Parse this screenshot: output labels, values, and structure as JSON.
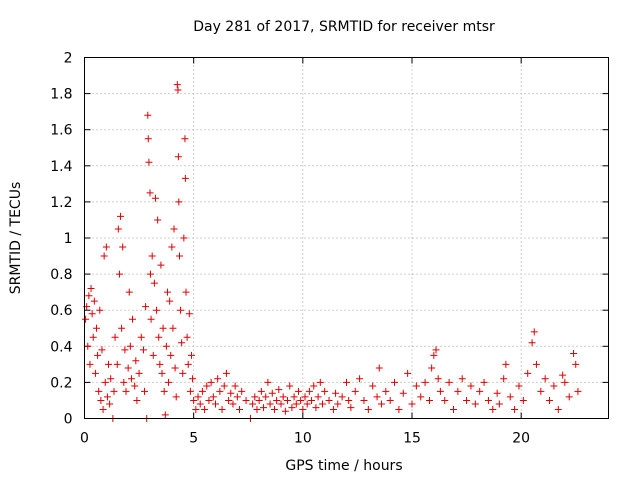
{
  "chart_data": {
    "type": "scatter",
    "title": "Day 281 of 2017, SRMTID for receiver mtsr",
    "xlabel": "GPS time / hours",
    "ylabel": "SRMTID / TECUs",
    "xlim": [
      0,
      24
    ],
    "ylim": [
      0,
      2
    ],
    "xticks": [
      "0",
      "5",
      "10",
      "15",
      "20"
    ],
    "yticks": [
      "0",
      "0.2",
      "0.4",
      "0.6",
      "0.8",
      "1",
      "1.2",
      "1.4",
      "1.6",
      "1.8",
      "2"
    ],
    "grid": true,
    "marker": "+",
    "color": "#e00000",
    "series": [
      {
        "name": "SRMTID",
        "points": [
          [
            0.05,
            0.55
          ],
          [
            0.1,
            0.62
          ],
          [
            0.15,
            0.4
          ],
          [
            0.2,
            0.68
          ],
          [
            0.25,
            0.3
          ],
          [
            0.3,
            0.72
          ],
          [
            0.35,
            0.58
          ],
          [
            0.4,
            0.45
          ],
          [
            0.45,
            0.65
          ],
          [
            0.5,
            0.25
          ],
          [
            0.55,
            0.5
          ],
          [
            0.6,
            0.35
          ],
          [
            0.65,
            0.15
          ],
          [
            0.7,
            0.6
          ],
          [
            0.75,
            0.1
          ],
          [
            0.8,
            0.38
          ],
          [
            0.85,
            0.05
          ],
          [
            0.9,
            0.9
          ],
          [
            0.95,
            0.2
          ],
          [
            1.0,
            0.95
          ],
          [
            1.05,
            0.12
          ],
          [
            1.1,
            0.3
          ],
          [
            1.15,
            0.08
          ],
          [
            1.2,
            0.22
          ],
          [
            1.3,
            0.0
          ],
          [
            1.35,
            0.15
          ],
          [
            1.4,
            0.45
          ],
          [
            1.5,
            0.3
          ],
          [
            1.55,
            1.05
          ],
          [
            1.6,
            0.8
          ],
          [
            1.65,
            1.12
          ],
          [
            1.7,
            0.5
          ],
          [
            1.75,
            0.95
          ],
          [
            1.8,
            0.2
          ],
          [
            1.85,
            0.38
          ],
          [
            1.9,
            0.15
          ],
          [
            2.0,
            0.28
          ],
          [
            2.05,
            0.7
          ],
          [
            2.1,
            0.4
          ],
          [
            2.15,
            0.22
          ],
          [
            2.2,
            0.55
          ],
          [
            2.3,
            0.18
          ],
          [
            2.35,
            0.32
          ],
          [
            2.4,
            0.1
          ],
          [
            2.5,
            0.25
          ],
          [
            2.6,
            0.45
          ],
          [
            2.7,
            0.38
          ],
          [
            2.75,
            0.15
          ],
          [
            2.8,
            0.62
          ],
          [
            2.85,
            0.0
          ],
          [
            2.9,
            1.68
          ],
          [
            2.92,
            1.55
          ],
          [
            2.95,
            1.42
          ],
          [
            3.0,
            1.25
          ],
          [
            3.02,
            0.8
          ],
          [
            3.05,
            0.55
          ],
          [
            3.1,
            0.9
          ],
          [
            3.15,
            0.35
          ],
          [
            3.2,
            0.75
          ],
          [
            3.25,
            1.22
          ],
          [
            3.3,
            0.6
          ],
          [
            3.35,
            1.1
          ],
          [
            3.4,
            0.45
          ],
          [
            3.45,
            0.3
          ],
          [
            3.5,
            0.85
          ],
          [
            3.55,
            0.25
          ],
          [
            3.6,
            0.5
          ],
          [
            3.65,
            0.15
          ],
          [
            3.7,
            0.02
          ],
          [
            3.75,
            0.4
          ],
          [
            3.8,
            0.7
          ],
          [
            3.85,
            0.2
          ],
          [
            3.9,
            0.65
          ],
          [
            3.95,
            0.35
          ],
          [
            4.0,
            0.95
          ],
          [
            4.05,
            0.5
          ],
          [
            4.1,
            1.05
          ],
          [
            4.15,
            0.28
          ],
          [
            4.2,
            0.12
          ],
          [
            4.25,
            1.85
          ],
          [
            4.28,
            1.82
          ],
          [
            4.3,
            1.45
          ],
          [
            4.32,
            1.2
          ],
          [
            4.35,
            0.9
          ],
          [
            4.4,
            0.6
          ],
          [
            4.45,
            0.42
          ],
          [
            4.5,
            0.25
          ],
          [
            4.55,
            1.0
          ],
          [
            4.6,
            1.55
          ],
          [
            4.62,
            1.33
          ],
          [
            4.65,
            0.7
          ],
          [
            4.7,
            0.45
          ],
          [
            4.75,
            0.3
          ],
          [
            4.8,
            0.58
          ],
          [
            4.85,
            0.15
          ],
          [
            4.9,
            0.35
          ],
          [
            4.95,
            0.22
          ],
          [
            5.0,
            0.1
          ],
          [
            5.1,
            0.05
          ],
          [
            5.2,
            0.12
          ],
          [
            5.3,
            0.08
          ],
          [
            5.4,
            0.15
          ],
          [
            5.5,
            0.05
          ],
          [
            5.6,
            0.18
          ],
          [
            5.7,
            0.1
          ],
          [
            5.8,
            0.2
          ],
          [
            5.9,
            0.12
          ],
          [
            6.0,
            0.08
          ],
          [
            6.1,
            0.22
          ],
          [
            6.2,
            0.15
          ],
          [
            6.3,
            0.05
          ],
          [
            6.4,
            0.18
          ],
          [
            6.5,
            0.25
          ],
          [
            6.6,
            0.1
          ],
          [
            6.7,
            0.14
          ],
          [
            6.8,
            0.08
          ],
          [
            6.9,
            0.18
          ],
          [
            7.0,
            0.12
          ],
          [
            7.1,
            0.05
          ],
          [
            7.2,
            0.15
          ],
          [
            7.4,
            0.1
          ],
          [
            7.6,
            0.0
          ],
          [
            7.7,
            0.08
          ],
          [
            7.8,
            0.12
          ],
          [
            7.9,
            0.05
          ],
          [
            8.0,
            0.1
          ],
          [
            8.1,
            0.15
          ],
          [
            8.2,
            0.06
          ],
          [
            8.3,
            0.12
          ],
          [
            8.4,
            0.2
          ],
          [
            8.5,
            0.08
          ],
          [
            8.6,
            0.14
          ],
          [
            8.7,
            0.05
          ],
          [
            8.8,
            0.1
          ],
          [
            8.9,
            0.16
          ],
          [
            9.0,
            0.08
          ],
          [
            9.1,
            0.12
          ],
          [
            9.2,
            0.04
          ],
          [
            9.3,
            0.1
          ],
          [
            9.4,
            0.18
          ],
          [
            9.5,
            0.06
          ],
          [
            9.6,
            0.12
          ],
          [
            9.7,
            0.08
          ],
          [
            9.8,
            0.15
          ],
          [
            9.9,
            0.1
          ],
          [
            10.0,
            0.05
          ],
          [
            10.1,
            0.12
          ],
          [
            10.2,
            0.08
          ],
          [
            10.3,
            0.15
          ],
          [
            10.4,
            0.1
          ],
          [
            10.5,
            0.18
          ],
          [
            10.6,
            0.06
          ],
          [
            10.7,
            0.12
          ],
          [
            10.8,
            0.2
          ],
          [
            10.9,
            0.08
          ],
          [
            11.0,
            0.15
          ],
          [
            11.2,
            0.1
          ],
          [
            11.4,
            0.05
          ],
          [
            11.5,
            0.14
          ],
          [
            11.6,
            0.08
          ],
          [
            11.8,
            0.12
          ],
          [
            12.0,
            0.2
          ],
          [
            12.1,
            0.1
          ],
          [
            12.2,
            0.06
          ],
          [
            12.4,
            0.15
          ],
          [
            12.6,
            0.22
          ],
          [
            12.8,
            0.1
          ],
          [
            13.0,
            0.05
          ],
          [
            13.2,
            0.18
          ],
          [
            13.4,
            0.12
          ],
          [
            13.5,
            0.28
          ],
          [
            13.6,
            0.08
          ],
          [
            13.8,
            0.15
          ],
          [
            14.0,
            0.1
          ],
          [
            14.2,
            0.2
          ],
          [
            14.4,
            0.05
          ],
          [
            14.6,
            0.14
          ],
          [
            14.8,
            0.25
          ],
          [
            15.0,
            0.08
          ],
          [
            15.2,
            0.18
          ],
          [
            15.4,
            0.12
          ],
          [
            15.6,
            0.2
          ],
          [
            15.8,
            0.1
          ],
          [
            15.9,
            0.28
          ],
          [
            16.0,
            0.35
          ],
          [
            16.1,
            0.38
          ],
          [
            16.2,
            0.22
          ],
          [
            16.3,
            0.15
          ],
          [
            16.5,
            0.1
          ],
          [
            16.7,
            0.2
          ],
          [
            16.9,
            0.05
          ],
          [
            17.1,
            0.15
          ],
          [
            17.3,
            0.22
          ],
          [
            17.5,
            0.1
          ],
          [
            17.7,
            0.18
          ],
          [
            17.9,
            0.08
          ],
          [
            18.1,
            0.15
          ],
          [
            18.3,
            0.2
          ],
          [
            18.5,
            0.1
          ],
          [
            18.7,
            0.05
          ],
          [
            18.9,
            0.14
          ],
          [
            19.0,
            0.08
          ],
          [
            19.2,
            0.22
          ],
          [
            19.3,
            0.3
          ],
          [
            19.5,
            0.12
          ],
          [
            19.7,
            0.05
          ],
          [
            19.9,
            0.18
          ],
          [
            20.1,
            0.1
          ],
          [
            20.3,
            0.25
          ],
          [
            20.5,
            0.42
          ],
          [
            20.6,
            0.48
          ],
          [
            20.7,
            0.3
          ],
          [
            20.9,
            0.15
          ],
          [
            21.1,
            0.22
          ],
          [
            21.3,
            0.1
          ],
          [
            21.5,
            0.18
          ],
          [
            21.7,
            0.05
          ],
          [
            21.9,
            0.24
          ],
          [
            22.0,
            0.2
          ],
          [
            22.2,
            0.12
          ],
          [
            22.4,
            0.36
          ],
          [
            22.5,
            0.3
          ],
          [
            22.6,
            0.15
          ]
        ]
      }
    ]
  }
}
